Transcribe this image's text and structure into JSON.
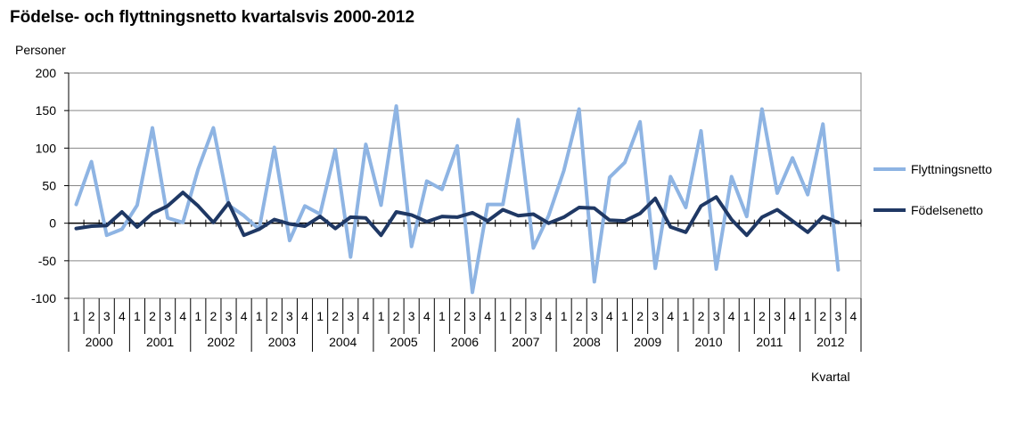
{
  "chart_data": {
    "type": "line",
    "title": "Födelse- och flyttningsnetto kvartalsvis 2000-2012",
    "ylabel": "Personer",
    "xlabel": "Kvartal",
    "ylim": [
      -100,
      200
    ],
    "yticks": [
      200,
      150,
      100,
      50,
      0,
      -50,
      -100
    ],
    "quarter_labels": [
      "1",
      "2",
      "3",
      "4"
    ],
    "years": [
      "2000",
      "2001",
      "2002",
      "2003",
      "2004",
      "2005",
      "2006",
      "2007",
      "2008",
      "2009",
      "2010",
      "2011",
      "2012"
    ],
    "grid": true,
    "legend_position": "right",
    "series": [
      {
        "name": "Flyttningsnetto",
        "color": "#8eb4e3",
        "values": [
          25,
          82,
          -16,
          -8,
          24,
          127,
          7,
          1,
          72,
          127,
          24,
          10,
          -8,
          101,
          -23,
          23,
          12,
          98,
          -45,
          105,
          24,
          156,
          -31,
          56,
          45,
          103,
          -92,
          25,
          25,
          138,
          -33,
          10,
          70,
          152,
          -78,
          61,
          81,
          135,
          -60,
          62,
          21,
          123,
          -61,
          62,
          9,
          152,
          40,
          87,
          38,
          132,
          -62
        ]
      },
      {
        "name": "Födelsenetto",
        "color": "#1f3864",
        "values": [
          -7,
          -4,
          -3,
          15,
          -5,
          13,
          23,
          41,
          23,
          1,
          27,
          -16,
          -8,
          5,
          -1,
          -4,
          9,
          -7,
          8,
          7,
          -16,
          15,
          11,
          2,
          9,
          8,
          14,
          3,
          18,
          10,
          12,
          0,
          8,
          21,
          20,
          4,
          3,
          13,
          33,
          -5,
          -12,
          23,
          35,
          5,
          -16,
          8,
          18,
          3,
          -12,
          9,
          1
        ]
      }
    ]
  }
}
